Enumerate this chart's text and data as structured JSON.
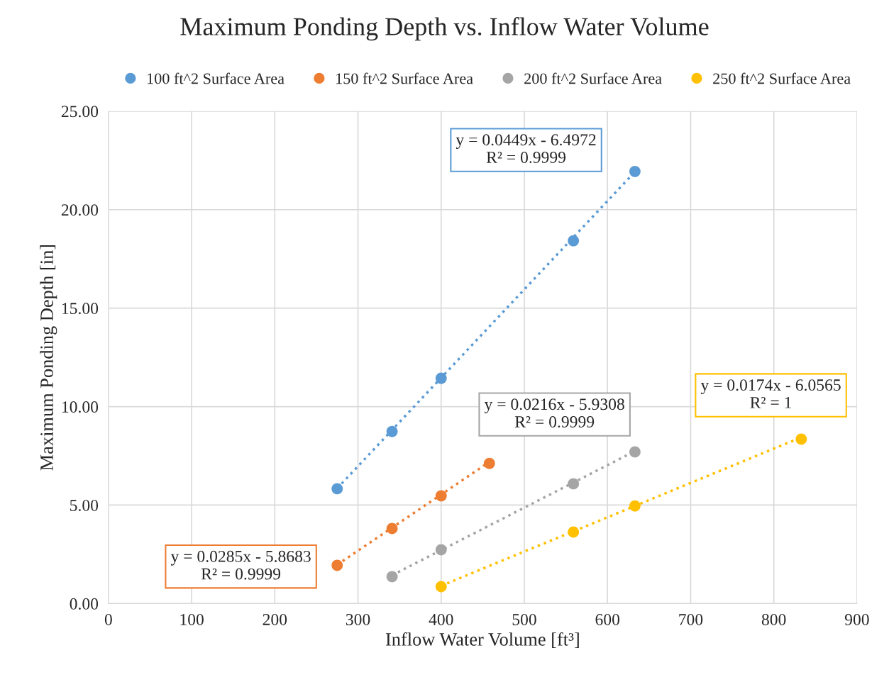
{
  "chart_data": {
    "type": "scatter",
    "title": "Maximum Ponding Depth vs. Inflow Water Volume",
    "xlabel": "Inflow Water Volume [ft³]",
    "ylabel": "Maximum Ponding Depth [in]",
    "series": [
      {
        "name": "100 ft^2 Surface Area",
        "color": "#5b9bd5",
        "x": [
          275,
          341,
          400,
          559,
          633
        ],
        "values": [
          5.83,
          8.74,
          11.44,
          18.42,
          21.94
        ]
      },
      {
        "name": "150 ft^2 Surface Area",
        "color": "#ed7d31",
        "x": [
          275,
          341,
          400,
          458
        ],
        "values": [
          1.94,
          3.81,
          5.47,
          7.12
        ]
      },
      {
        "name": "200 ft^2 Surface Area",
        "color": "#a5a5a5",
        "x": [
          341,
          400,
          559,
          633
        ],
        "values": [
          1.37,
          2.73,
          6.08,
          7.7
        ]
      },
      {
        "name": "250 ft^2 Surface Area",
        "color": "#ffc000",
        "x": [
          400,
          559,
          633,
          833
        ],
        "values": [
          0.86,
          3.63,
          4.96,
          8.35
        ]
      },
      {
        "type": "line",
        "line_style": "dotted",
        "color": "#5b9bd5",
        "x": [
          275,
          633
        ],
        "values": [
          5.85,
          21.92
        ]
      },
      {
        "type": "line",
        "line_style": "dotted",
        "color": "#ed7d31",
        "x": [
          275,
          458
        ],
        "values": [
          1.97,
          7.19
        ]
      },
      {
        "type": "line",
        "line_style": "dotted",
        "color": "#a5a5a5",
        "x": [
          341,
          633
        ],
        "values": [
          1.44,
          7.74
        ]
      },
      {
        "type": "line",
        "line_style": "dotted",
        "color": "#ffc000",
        "x": [
          400,
          833
        ],
        "values": [
          0.9,
          8.44
        ]
      }
    ],
    "annotations": [
      "y = 0.0449x - 6.4972\nR² = 0.9999",
      "y = 0.0285x - 5.8683\nR² = 0.9999",
      "y = 0.0216x - 5.9308\nR² = 0.9999",
      "y = 0.0174x - 6.0565\nR² = 1"
    ],
    "xlim": [
      0,
      900
    ],
    "xticks": [
      0,
      100,
      200,
      300,
      400,
      500,
      600,
      700,
      800,
      900
    ],
    "ylim": [
      0,
      25
    ],
    "yticks": [
      {
        "value": 0,
        "label": "0.00"
      },
      {
        "value": 5,
        "label": "5.00"
      },
      {
        "value": 10,
        "label": "10.00"
      },
      {
        "value": 15,
        "label": "15.00"
      },
      {
        "value": 20,
        "label": "20.00"
      },
      {
        "value": 25,
        "label": "25.00"
      }
    ],
    "grid": true,
    "legend": "top",
    "marker": "circle"
  }
}
